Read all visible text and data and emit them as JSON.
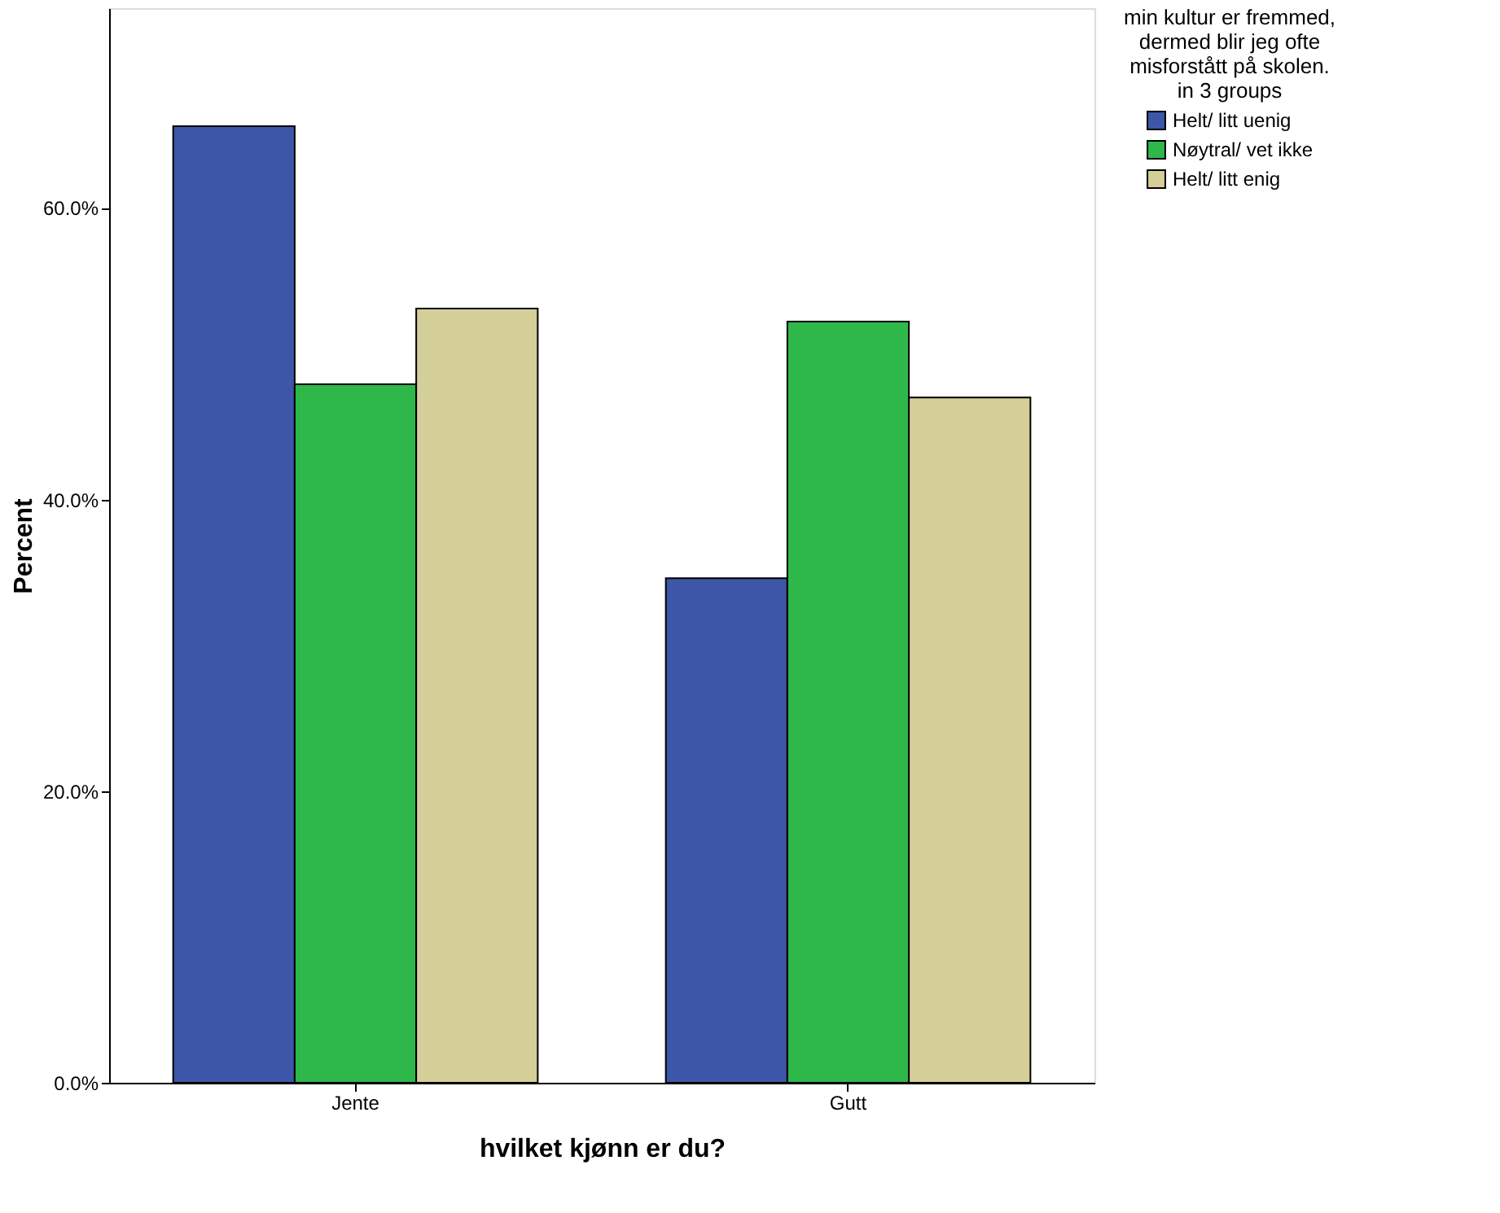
{
  "chart_data": {
    "type": "bar",
    "xlabel": "hvilket kjønn er du?",
    "ylabel": "Percent",
    "legend_title": "min kultur er fremmed,\ndermed blir jeg ofte\nmisforstått på skolen.\nin 3 groups",
    "categories": [
      "Jente",
      "Gutt"
    ],
    "series": [
      {
        "name": "Helt/ litt uenig",
        "color": "#3d56a8",
        "values": [
          65.6,
          34.6
        ]
      },
      {
        "name": "Nøytral/ vet ikke",
        "color": "#2eb84a",
        "values": [
          47.9,
          52.2
        ]
      },
      {
        "name": "Helt/ litt enig",
        "color": "#d4ce98",
        "values": [
          53.1,
          47.0
        ]
      }
    ],
    "ylim": [
      0,
      73.7
    ],
    "yticks": [
      {
        "value": 0,
        "label": "0.0%"
      },
      {
        "value": 20,
        "label": "20.0%"
      },
      {
        "value": 40,
        "label": "40.0%"
      },
      {
        "value": 60,
        "label": "60.0%"
      }
    ],
    "grid": false,
    "legend": "top right"
  }
}
